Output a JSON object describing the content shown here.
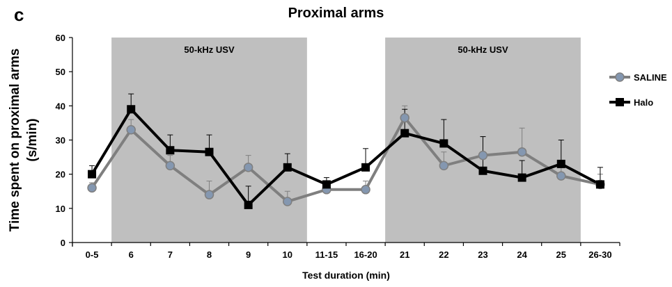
{
  "panel_label": "c",
  "chart_data": {
    "type": "line",
    "title": "Proximal arms",
    "xlabel": "Test duration (min)",
    "ylabel_lines": [
      "Time spent on proximal arms",
      "(s/min)"
    ],
    "categories": [
      "0-5",
      "6",
      "7",
      "8",
      "9",
      "10",
      "11-15",
      "16-20",
      "21",
      "22",
      "23",
      "24",
      "25",
      "26-30"
    ],
    "ylim": [
      0,
      60
    ],
    "yticks": [
      0,
      10,
      20,
      30,
      40,
      50,
      60
    ],
    "grid": false,
    "legend_position": "right",
    "shaded_regions": [
      {
        "label": "50-kHz USV",
        "from": "6",
        "to": "10"
      },
      {
        "label": "50-kHz USV",
        "from": "21",
        "to": "25"
      }
    ],
    "series": [
      {
        "name": "SALINE",
        "color": "#7f7f7f",
        "marker": "circle",
        "marker_fill": "#8497b0",
        "values": [
          16,
          33,
          22.5,
          14,
          22,
          12,
          15.5,
          15.5,
          36.5,
          22.5,
          25.5,
          26.5,
          19.5,
          17
        ],
        "errors": [
          1.5,
          3,
          3,
          4,
          3.5,
          3,
          2,
          2.5,
          3.5,
          4,
          5.5,
          7,
          3.5,
          3
        ]
      },
      {
        "name": "Halo",
        "color": "#000000",
        "marker": "square",
        "marker_fill": "#000000",
        "values": [
          20,
          39,
          27,
          26.5,
          11,
          22,
          17,
          22,
          32,
          29,
          21,
          19,
          23,
          17
        ],
        "errors": [
          2.5,
          4.5,
          4.5,
          5,
          5.5,
          4,
          2,
          5.5,
          7,
          7,
          10,
          5,
          7,
          5
        ]
      }
    ]
  }
}
